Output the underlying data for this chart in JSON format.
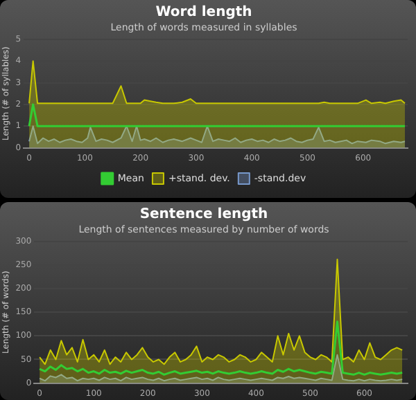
{
  "chart_data": [
    {
      "type": "area",
      "title": "Word length",
      "subtitle": "Length of words measured in syllables",
      "ylabel": "Length (# of syllables)",
      "x": [
        0,
        7,
        15,
        25,
        35,
        45,
        55,
        65,
        75,
        85,
        95,
        105,
        110,
        120,
        130,
        140,
        150,
        165,
        175,
        185,
        193,
        200,
        207,
        218,
        228,
        240,
        250,
        260,
        275,
        290,
        300,
        310,
        320,
        330,
        340,
        350,
        360,
        370,
        380,
        390,
        400,
        410,
        420,
        430,
        440,
        450,
        460,
        470,
        480,
        490,
        500,
        510,
        520,
        530,
        540,
        550,
        560,
        570,
        580,
        590,
        605,
        615,
        630,
        640,
        655,
        668,
        675
      ],
      "series": [
        {
          "name": "+stand. dev.",
          "color": "#c8c800",
          "values": [
            2.05,
            4,
            2.05,
            2.05,
            2.05,
            2.05,
            2.05,
            2.05,
            2.05,
            2.05,
            2.05,
            2.05,
            2.05,
            2.05,
            2.05,
            2.05,
            2.05,
            2.85,
            2.05,
            2.05,
            2.05,
            2.05,
            2.2,
            2.15,
            2.1,
            2.05,
            2.05,
            2.05,
            2.1,
            2.25,
            2.05,
            2.05,
            2.05,
            2.05,
            2.05,
            2.05,
            2.05,
            2.05,
            2.05,
            2.05,
            2.05,
            2.05,
            2.05,
            2.05,
            2.05,
            2.05,
            2.05,
            2.05,
            2.05,
            2.05,
            2.05,
            2.05,
            2.05,
            2.1,
            2.05,
            2.05,
            2.05,
            2.05,
            2.05,
            2.05,
            2.2,
            2.05,
            2.1,
            2.05,
            2.15,
            2.2,
            2.05
          ]
        },
        {
          "name": "Mean",
          "type": "line",
          "color": "#33cc33",
          "values": [
            1,
            2,
            1,
            1,
            1,
            1,
            1,
            1,
            1,
            1,
            1,
            1,
            1,
            1,
            1,
            1,
            1,
            1,
            1,
            1,
            1,
            1,
            1,
            1,
            1,
            1,
            1,
            1,
            1,
            1,
            1,
            1,
            1,
            1,
            1,
            1,
            1,
            1,
            1,
            1,
            1,
            1,
            1,
            1,
            1,
            1,
            1,
            1,
            1,
            1,
            1,
            1,
            1,
            1,
            1,
            1,
            1,
            1,
            1,
            1,
            1,
            1,
            1,
            1,
            1,
            1,
            1
          ]
        },
        {
          "name": "-stand.dev",
          "color": "#7799cc",
          "values": [
            0.3,
            1,
            0.2,
            0.45,
            0.3,
            0.4,
            0.25,
            0.35,
            0.4,
            0.3,
            0.25,
            0.45,
            0.95,
            0.3,
            0.4,
            0.35,
            0.25,
            0.45,
            1,
            0.3,
            1,
            0.35,
            0.4,
            0.3,
            0.45,
            0.25,
            0.35,
            0.4,
            0.3,
            0.45,
            0.35,
            0.25,
            1,
            0.3,
            0.4,
            0.35,
            0.3,
            0.45,
            0.25,
            0.35,
            0.4,
            0.3,
            0.35,
            0.25,
            0.4,
            0.3,
            0.35,
            0.45,
            0.3,
            0.25,
            0.35,
            0.4,
            0.95,
            0.3,
            0.35,
            0.25,
            0.3,
            0.35,
            0.2,
            0.3,
            0.25,
            0.35,
            0.3,
            0.2,
            0.3,
            0.25,
            0.3
          ]
        }
      ],
      "xlim": [
        -10,
        680
      ],
      "xticks": [
        0,
        100,
        200,
        300,
        400,
        500,
        600
      ],
      "ylim": [
        0,
        5
      ],
      "yticks": [
        0,
        1,
        2,
        3,
        4,
        5
      ],
      "grid": "y",
      "legend": "bottom"
    },
    {
      "type": "area",
      "title": "Sentence length",
      "subtitle": "Length of sentences measured by number of words",
      "ylabel": "Length (# of words)",
      "x": [
        0,
        10,
        20,
        30,
        40,
        50,
        60,
        70,
        80,
        90,
        100,
        110,
        120,
        130,
        140,
        150,
        160,
        170,
        180,
        190,
        200,
        210,
        220,
        230,
        240,
        250,
        260,
        270,
        280,
        290,
        300,
        310,
        320,
        330,
        340,
        350,
        360,
        370,
        380,
        390,
        400,
        410,
        420,
        430,
        440,
        450,
        460,
        470,
        480,
        490,
        500,
        510,
        520,
        530,
        540,
        550,
        560,
        570,
        580,
        590,
        600,
        610,
        620,
        630,
        640,
        650,
        660,
        670
      ],
      "series": [
        {
          "color": "#c8c800",
          "values": [
            55,
            40,
            70,
            50,
            90,
            60,
            75,
            45,
            92,
            50,
            60,
            45,
            70,
            40,
            55,
            45,
            65,
            50,
            60,
            75,
            55,
            45,
            50,
            40,
            55,
            65,
            45,
            50,
            60,
            78,
            45,
            55,
            50,
            60,
            55,
            45,
            50,
            60,
            55,
            45,
            50,
            65,
            55,
            45,
            100,
            60,
            105,
            70,
            100,
            65,
            55,
            50,
            60,
            55,
            45,
            262,
            50,
            55,
            45,
            70,
            50,
            85,
            55,
            50,
            60,
            70,
            75,
            70
          ]
        },
        {
          "type": "line",
          "color": "#33cc33",
          "values": [
            30,
            25,
            35,
            28,
            38,
            30,
            32,
            25,
            30,
            22,
            25,
            20,
            28,
            22,
            24,
            20,
            26,
            22,
            25,
            28,
            22,
            20,
            24,
            18,
            22,
            25,
            20,
            22,
            24,
            26,
            22,
            24,
            20,
            25,
            22,
            20,
            22,
            25,
            22,
            20,
            22,
            25,
            22,
            20,
            28,
            24,
            30,
            25,
            28,
            25,
            22,
            20,
            24,
            22,
            20,
            130,
            22,
            20,
            18,
            22,
            18,
            22,
            20,
            18,
            20,
            22,
            20,
            22
          ]
        },
        {
          "color": "#7799cc",
          "values": [
            10,
            5,
            15,
            12,
            18,
            10,
            12,
            5,
            10,
            8,
            10,
            6,
            12,
            8,
            10,
            5,
            12,
            8,
            10,
            12,
            8,
            6,
            10,
            5,
            8,
            10,
            6,
            8,
            10,
            12,
            8,
            10,
            6,
            12,
            8,
            6,
            8,
            10,
            8,
            6,
            8,
            10,
            8,
            6,
            12,
            10,
            14,
            10,
            12,
            10,
            8,
            6,
            10,
            8,
            6,
            60,
            8,
            6,
            5,
            8,
            5,
            8,
            6,
            5,
            6,
            8,
            6,
            8
          ]
        }
      ],
      "xlim": [
        -10,
        680
      ],
      "xticks": [
        0,
        100,
        200,
        300,
        400,
        500,
        600
      ],
      "ylim": [
        0,
        300
      ],
      "yticks": [
        0,
        50,
        100,
        150,
        200,
        250,
        300
      ],
      "grid": "y"
    }
  ]
}
